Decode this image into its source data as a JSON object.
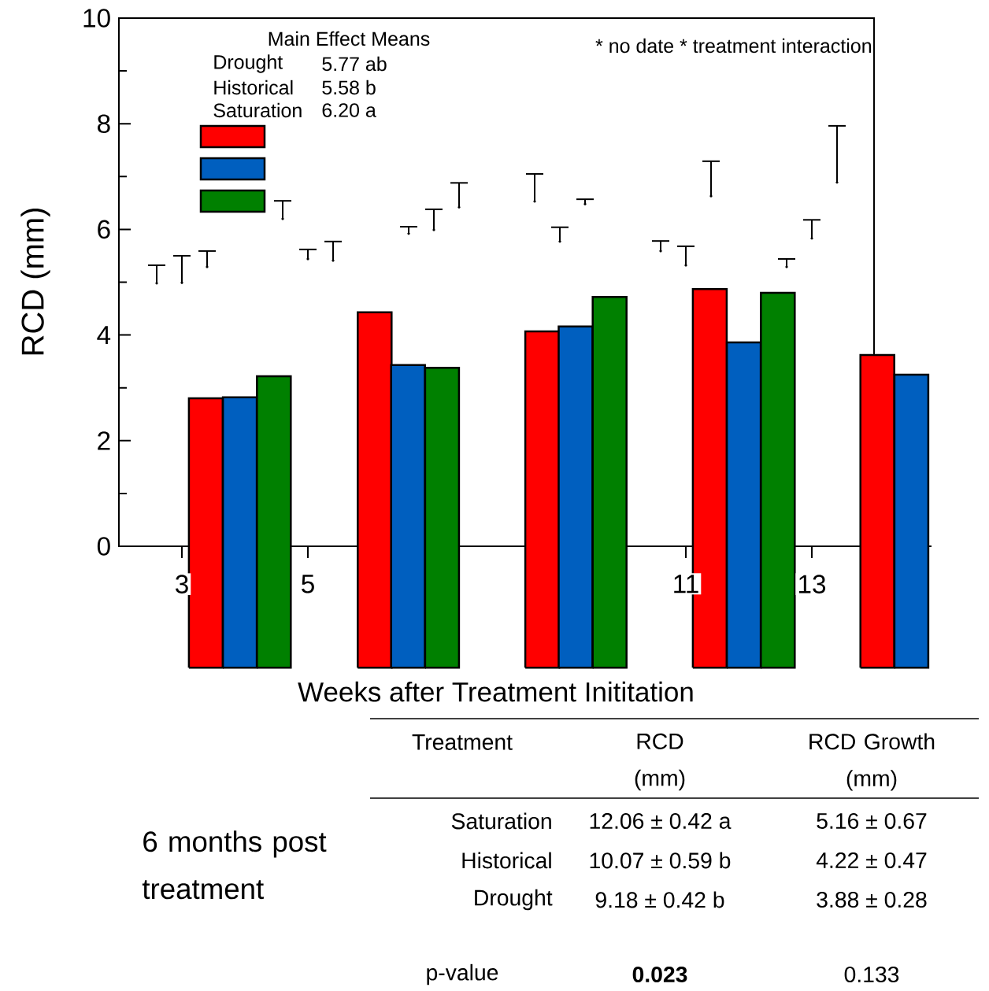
{
  "chart_data": [
    {
      "type": "bar",
      "xlabel": "Weeks after Treatment Inititation",
      "ylabel": "RCD (mm)",
      "xlim": [
        2,
        14.9
      ],
      "ylim": [
        -2.3,
        10
      ],
      "xticks": [
        3,
        5,
        11,
        13
      ],
      "yticks": [
        0,
        2,
        4,
        6,
        8,
        10
      ],
      "annotations": [
        "Main Effect Means",
        "Drought",
        "5.77 ab",
        "Historical",
        "5.58 b",
        "Saturation",
        "6.20 a",
        "* no date * treatment interaction"
      ],
      "series": [
        {
          "type": "bar",
          "color": "#ff0000",
          "x": [
            3.38,
            6.06,
            8.72,
            11.38,
            14.04
          ],
          "base": [
            -2.3,
            -2.3,
            -2.3,
            -2.3,
            -2.3
          ],
          "values": [
            5.1,
            6.73,
            6.37,
            7.17,
            5.92
          ]
        },
        {
          "type": "bar",
          "color": "#005fbf",
          "x": [
            3.92,
            6.59,
            9.25,
            11.92,
            14.58
          ],
          "base": [
            -2.3,
            -2.3,
            -2.3,
            -2.3,
            -2.3
          ],
          "values": [
            5.12,
            5.73,
            6.46,
            6.16,
            5.55
          ]
        },
        {
          "type": "bar",
          "color": "#008000",
          "x": [
            4.46,
            7.13,
            9.79,
            12.46
          ],
          "base": [
            -2.3,
            -2.3,
            -2.3,
            -2.3
          ],
          "values": [
            5.52,
            5.68,
            7.02,
            7.1
          ]
        },
        {
          "type": "scatter",
          "marker": "circle",
          "color": "#000000",
          "x": [
            2.6,
            4.6,
            6.6,
            8.6,
            10.6,
            12.6
          ],
          "values": [
            4.98,
            6.2,
            5.92,
            6.53,
            5.59,
            5.29
          ],
          "errors": [
            [
              4.98,
              5.32
            ],
            [
              6.2,
              6.54
            ],
            [
              5.92,
              6.05
            ],
            [
              6.53,
              7.05
            ],
            [
              5.59,
              5.78
            ],
            [
              5.29,
              5.44
            ]
          ]
        },
        {
          "type": "scatter",
          "marker": "circle",
          "color": "#000000",
          "x": [
            3,
            5,
            7,
            9,
            11,
            13
          ],
          "values": [
            4.99,
            5.44,
            5.99,
            5.77,
            5.32,
            5.83
          ],
          "errors": [
            [
              4.99,
              5.5
            ],
            [
              5.44,
              5.62
            ],
            [
              5.99,
              6.38
            ],
            [
              5.77,
              6.04
            ],
            [
              5.32,
              5.68
            ],
            [
              5.83,
              6.18
            ]
          ]
        },
        {
          "type": "scatter",
          "marker": "circle",
          "color": "#000000",
          "x": [
            3.4,
            5.4,
            7.4,
            9.4,
            11.4,
            13.4
          ],
          "values": [
            5.29,
            5.41,
            6.42,
            6.48,
            6.63,
            6.89
          ],
          "errors": [
            [
              5.29,
              5.59
            ],
            [
              5.41,
              5.77
            ],
            [
              6.42,
              6.88
            ],
            [
              6.48,
              6.57
            ],
            [
              6.63,
              7.29
            ],
            [
              6.89,
              7.96
            ]
          ]
        }
      ]
    },
    {
      "type": "other",
      "annotations": [
        "6 months post treatment",
        "Treatment",
        "RCD (mm)",
        "RCD Growth (mm)",
        "Saturation",
        "12.06 ± 0.42 a",
        "5.16 ± 0.67",
        "Historical",
        "10.07 ± 0.59 b",
        "4.22 ± 0.47",
        "Drought",
        "9.18 ± 0.42 b",
        "3.88 ± 0.28",
        "p-value",
        "**0.023**",
        "0.133"
      ]
    }
  ]
}
